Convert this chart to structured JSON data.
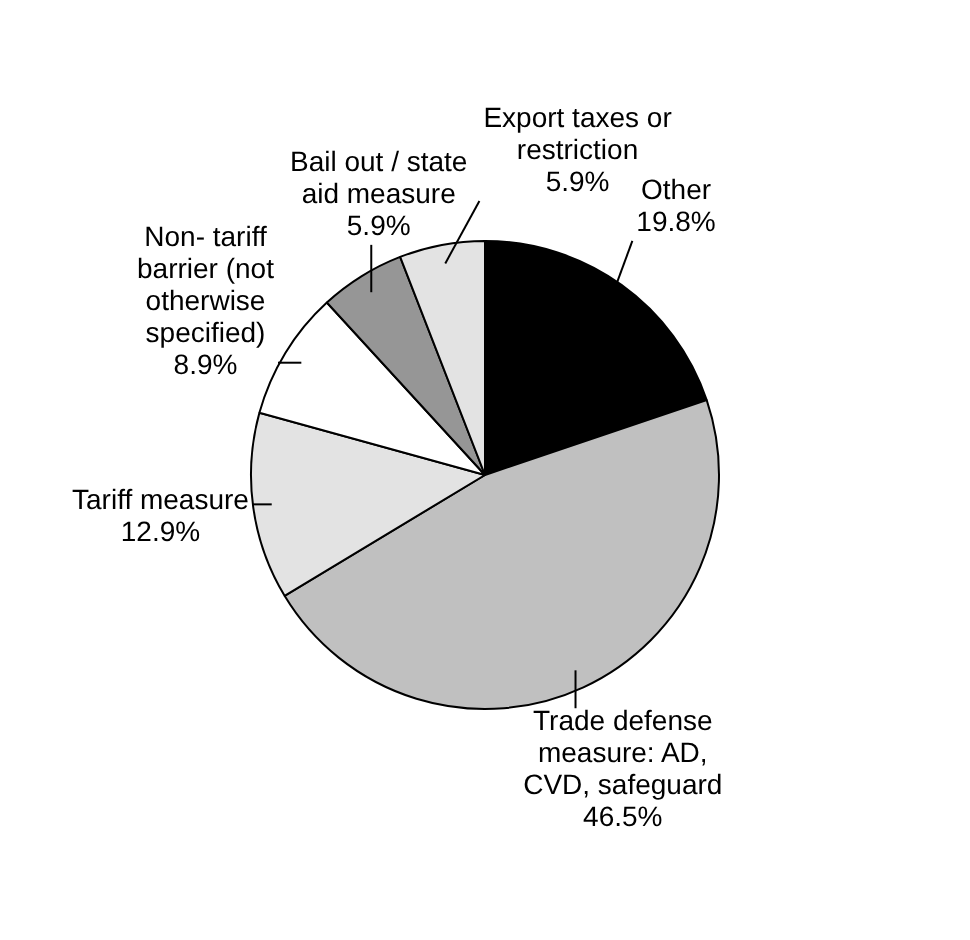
{
  "chart_data": {
    "type": "pie",
    "categories": [
      "Other",
      "Trade defense measure: AD, CVD, safeguard",
      "Tariff measure",
      "Non- tariff barrier (not otherwise specified)",
      "Bail out / state aid measure",
      "Export taxes or restriction"
    ],
    "values": [
      19.8,
      46.5,
      12.9,
      8.9,
      5.9,
      5.9
    ],
    "colors": [
      "#000000",
      "#c0c0c0",
      "#e3e3e3",
      "#ffffff",
      "#969696",
      "#e3e3e3"
    ],
    "value_labels": [
      "19.8%",
      "46.5%",
      "12.9%",
      "8.9%",
      "5.9%",
      "5.9%"
    ],
    "legend": false
  }
}
